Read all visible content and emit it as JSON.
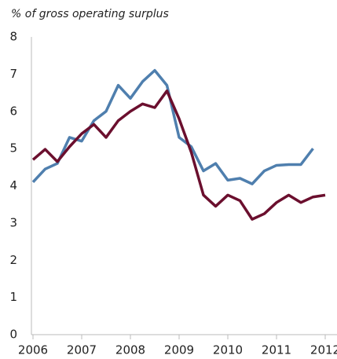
{
  "chart_data": {
    "type": "line",
    "title": "% of gross operating surplus",
    "x": [
      2006,
      2006.25,
      2006.5,
      2006.75,
      2007,
      2007.25,
      2007.5,
      2007.75,
      2008,
      2008.25,
      2008.5,
      2008.75,
      2009,
      2009.25,
      2009.5,
      2009.75,
      2010,
      2010.25,
      2010.5,
      2010.75,
      2011,
      2011.25,
      2011.5,
      2011.75,
      2012
    ],
    "series": [
      {
        "color": "#4f7fae",
        "values": [
          4.1,
          4.45,
          4.6,
          5.3,
          5.2,
          5.75,
          6.0,
          6.7,
          6.35,
          6.8,
          7.1,
          6.7,
          5.3,
          5.05,
          4.4,
          4.6,
          4.15,
          4.2,
          4.05,
          4.4,
          4.55,
          4.57,
          4.57,
          5.0,
          null
        ]
      },
      {
        "color": "#6b0f2e",
        "values": [
          4.7,
          4.98,
          4.65,
          5.05,
          5.4,
          5.65,
          5.3,
          5.75,
          6.0,
          6.2,
          6.1,
          6.55,
          5.8,
          4.9,
          3.75,
          3.45,
          3.75,
          3.6,
          3.1,
          3.25,
          3.55,
          3.75,
          3.55,
          3.7,
          3.75
        ]
      }
    ],
    "xlim": [
      2006,
      2012
    ],
    "xticks": [
      2006,
      2007,
      2008,
      2009,
      2010,
      2011,
      2012
    ],
    "ylim": [
      0,
      8
    ],
    "yticks": [
      0,
      1,
      2,
      3,
      4,
      5,
      6,
      7,
      8
    ],
    "grid": false
  }
}
